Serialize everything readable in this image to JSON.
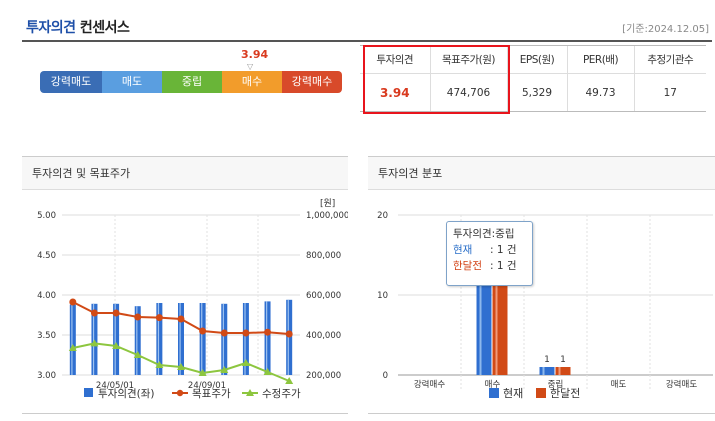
{
  "header": {
    "title_main": "투자의견",
    "title_sub": "컨센서스",
    "base_date": "[기준:2024.12.05]"
  },
  "rating_bar": {
    "current_value": "3.94",
    "current_marker": "▽",
    "segments": [
      {
        "label": "강력매도",
        "color": "#3a6db5"
      },
      {
        "label": "매도",
        "color": "#5a9ee0"
      },
      {
        "label": "중립",
        "color": "#69b538"
      },
      {
        "label": "매수",
        "color": "#f29c2b"
      },
      {
        "label": "강력매수",
        "color": "#d84a2a"
      }
    ]
  },
  "consensus_table": {
    "headers": [
      "투자의견",
      "목표주가(원)",
      "EPS(원)",
      "PER(배)",
      "추정기관수"
    ],
    "values": [
      "3.94",
      "474,706",
      "5,329",
      "49.73",
      "17"
    ]
  },
  "left_panel": {
    "title": "투자의견 및 목표주가",
    "legend": [
      "투자의견(좌)",
      "목표주가",
      "수정주가"
    ]
  },
  "right_panel": {
    "title": "투자의견 분포",
    "legend": [
      "현재",
      "한달전"
    ],
    "tooltip": {
      "title": "투자의견:중립",
      "row1_label": "현재",
      "row1_value": ": 1 건",
      "row2_label": "한달전",
      "row2_value": ": 1 건"
    }
  },
  "chart_data": [
    {
      "type": "line",
      "title": "투자의견 및 목표주가",
      "x_tick_labels": [
        "24/05/01",
        "24/09/01"
      ],
      "left_axis": {
        "ticks": [
          "5.00",
          "4.50",
          "4.00",
          "3.50",
          "3.00"
        ],
        "range": [
          3.0,
          5.0
        ]
      },
      "right_axis": {
        "unit": "[원]",
        "ticks": [
          "1,000,000",
          "800,000",
          "600,000",
          "400,000",
          "200,000"
        ],
        "range": [
          200000,
          1000000
        ]
      },
      "series": [
        {
          "name": "투자의견(좌)",
          "kind": "bar",
          "color": "#2f6fd0",
          "values": [
            3.88,
            3.89,
            3.89,
            3.86,
            3.9,
            3.9,
            3.9,
            3.89,
            3.9,
            3.92,
            3.94
          ]
        },
        {
          "name": "목표주가",
          "kind": "line",
          "color": "#d14a16",
          "values": [
            565000,
            510000,
            510000,
            490000,
            487000,
            480000,
            420000,
            410000,
            410000,
            414000,
            405000
          ]
        },
        {
          "name": "수정주가",
          "kind": "line",
          "color": "#8dc63f",
          "values": [
            335000,
            358000,
            345000,
            300000,
            250000,
            240000,
            210000,
            225000,
            260000,
            215000,
            170000
          ]
        }
      ]
    },
    {
      "type": "bar",
      "title": "투자의견 분포",
      "categories": [
        "강력매수",
        "매수",
        "중립",
        "매도",
        "강력매도"
      ],
      "y_ticks": [
        "20",
        "10",
        "0"
      ],
      "ylim": [
        0,
        20
      ],
      "series": [
        {
          "name": "현재",
          "color": "#2f6fd0",
          "values": [
            0,
            16,
            1,
            0,
            0
          ]
        },
        {
          "name": "한달전",
          "color": "#d14a16",
          "values": [
            0,
            16,
            1,
            0,
            0
          ]
        }
      ],
      "data_labels": {
        "중립": [
          "1",
          "1"
        ]
      }
    }
  ]
}
